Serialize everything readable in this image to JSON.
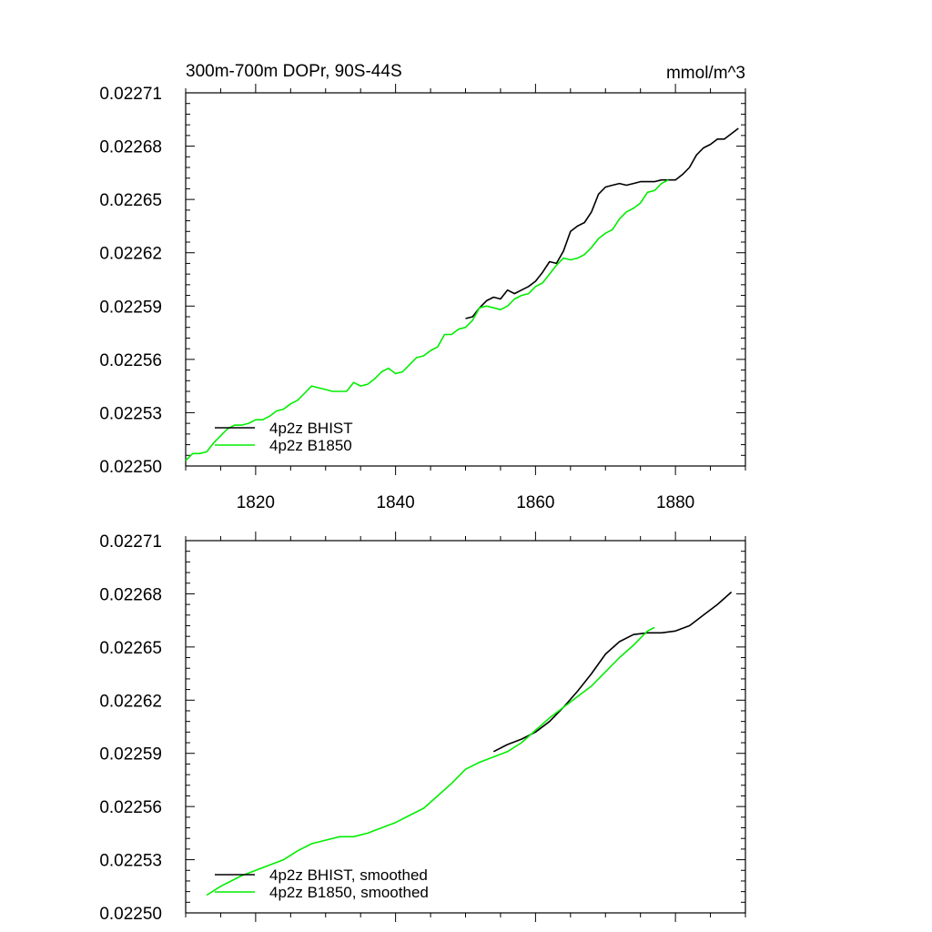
{
  "colors": {
    "bhist": "#000000",
    "b1850": "#00ee00",
    "background": "#ffffff"
  },
  "chart_data": [
    {
      "type": "line",
      "title": "300m-700m DOPr, 90S-44S",
      "units": "mmol/m^3",
      "xlabel": "",
      "ylabel": "",
      "xlim": [
        1810,
        1890
      ],
      "ylim": [
        0.0225,
        0.02271
      ],
      "yticks": [
        0.0225,
        0.02253,
        0.02256,
        0.02259,
        0.02262,
        0.02265,
        0.02268,
        0.02271
      ],
      "ytick_labels": [
        "0.02250",
        "0.02253",
        "0.02256",
        "0.02259",
        "0.02262",
        "0.02265",
        "0.02268",
        "0.02271"
      ],
      "xticks": [
        1820,
        1840,
        1860,
        1880
      ],
      "xtick_labels": [
        "1820",
        "1840",
        "1860",
        "1880"
      ],
      "legend": "bottom-left",
      "series": [
        {
          "name": "4p2z BHIST",
          "color_key": "bhist",
          "x": [
            1850,
            1851,
            1852,
            1853,
            1854,
            1855,
            1856,
            1857,
            1858,
            1859,
            1860,
            1861,
            1862,
            1863,
            1864,
            1865,
            1866,
            1867,
            1868,
            1869,
            1870,
            1871,
            1872,
            1873,
            1874,
            1875,
            1876,
            1877,
            1878,
            1879,
            1880,
            1881,
            1882,
            1883,
            1884,
            1885,
            1886,
            1887,
            1888,
            1889
          ],
          "y": [
            0.022583,
            0.022584,
            0.022589,
            0.022593,
            0.022595,
            0.022594,
            0.022599,
            0.022597,
            0.022599,
            0.022601,
            0.022604,
            0.022609,
            0.022615,
            0.022614,
            0.022621,
            0.022632,
            0.022635,
            0.022637,
            0.022643,
            0.022653,
            0.022657,
            0.022658,
            0.022659,
            0.022658,
            0.022659,
            0.02266,
            0.02266,
            0.02266,
            0.022661,
            0.022661,
            0.022661,
            0.022664,
            0.022668,
            0.022675,
            0.022679,
            0.022681,
            0.022684,
            0.022684,
            0.022687,
            0.02269
          ]
        },
        {
          "name": "4p2z B1850",
          "color_key": "b1850",
          "x": [
            1810,
            1811,
            1812,
            1813,
            1814,
            1815,
            1816,
            1817,
            1818,
            1819,
            1820,
            1821,
            1822,
            1823,
            1824,
            1825,
            1826,
            1827,
            1828,
            1829,
            1830,
            1831,
            1832,
            1833,
            1834,
            1835,
            1836,
            1837,
            1838,
            1839,
            1840,
            1841,
            1842,
            1843,
            1844,
            1845,
            1846,
            1847,
            1848,
            1849,
            1850,
            1851,
            1852,
            1853,
            1854,
            1855,
            1856,
            1857,
            1858,
            1859,
            1860,
            1861,
            1862,
            1863,
            1864,
            1865,
            1866,
            1867,
            1868,
            1869,
            1870,
            1871,
            1872,
            1873,
            1874,
            1875,
            1876,
            1877,
            1878,
            1879
          ],
          "y": [
            0.022503,
            0.022507,
            0.022507,
            0.022508,
            0.022513,
            0.022517,
            0.022521,
            0.022523,
            0.022523,
            0.022524,
            0.022526,
            0.022526,
            0.022528,
            0.022531,
            0.022532,
            0.022535,
            0.022537,
            0.022541,
            0.022545,
            0.022544,
            0.022543,
            0.022542,
            0.022542,
            0.022542,
            0.022547,
            0.022545,
            0.022546,
            0.022549,
            0.022553,
            0.022555,
            0.022552,
            0.022553,
            0.022557,
            0.022561,
            0.022562,
            0.022565,
            0.022567,
            0.022574,
            0.022574,
            0.022577,
            0.022578,
            0.022582,
            0.022589,
            0.02259,
            0.022589,
            0.022588,
            0.02259,
            0.022594,
            0.022596,
            0.022597,
            0.022601,
            0.022603,
            0.022608,
            0.022613,
            0.022617,
            0.022616,
            0.022617,
            0.022619,
            0.022623,
            0.022628,
            0.022631,
            0.022633,
            0.022639,
            0.022643,
            0.022645,
            0.022648,
            0.022654,
            0.022655,
            0.022659,
            0.022661
          ]
        }
      ]
    },
    {
      "type": "line",
      "title": "",
      "units": "",
      "xlabel": "",
      "ylabel": "",
      "xlim": [
        1810,
        1890
      ],
      "ylim": [
        0.0225,
        0.02271
      ],
      "yticks": [
        0.0225,
        0.02253,
        0.02256,
        0.02259,
        0.02262,
        0.02265,
        0.02268,
        0.02271
      ],
      "ytick_labels": [
        "0.02250",
        "0.02253",
        "0.02256",
        "0.02259",
        "0.02262",
        "0.02265",
        "0.02268",
        "0.02271"
      ],
      "xticks": [
        1820,
        1840,
        1860,
        1880
      ],
      "xtick_labels": [],
      "legend": "bottom-left",
      "series": [
        {
          "name": "4p2z BHIST, smoothed",
          "color_key": "bhist",
          "x": [
            1854,
            1856,
            1858,
            1860,
            1862,
            1864,
            1866,
            1868,
            1870,
            1872,
            1874,
            1876,
            1878,
            1880,
            1882,
            1884,
            1886,
            1888
          ],
          "y": [
            0.022591,
            0.022595,
            0.022598,
            0.022602,
            0.022608,
            0.022616,
            0.022625,
            0.022635,
            0.022646,
            0.022653,
            0.022657,
            0.022658,
            0.022658,
            0.022659,
            0.022662,
            0.022668,
            0.022674,
            0.022681
          ]
        },
        {
          "name": "4p2z B1850, smoothed",
          "color_key": "b1850",
          "x": [
            1813,
            1815,
            1818,
            1820,
            1822,
            1824,
            1826,
            1828,
            1830,
            1832,
            1834,
            1836,
            1838,
            1840,
            1842,
            1844,
            1846,
            1848,
            1850,
            1852,
            1854,
            1856,
            1858,
            1860,
            1862,
            1864,
            1866,
            1868,
            1870,
            1872,
            1874,
            1876,
            1877
          ],
          "y": [
            0.02251,
            0.022515,
            0.022521,
            0.022524,
            0.022527,
            0.02253,
            0.022535,
            0.022539,
            0.022541,
            0.022543,
            0.022543,
            0.022545,
            0.022548,
            0.022551,
            0.022555,
            0.022559,
            0.022566,
            0.022573,
            0.022581,
            0.022585,
            0.022588,
            0.022591,
            0.022596,
            0.022603,
            0.02261,
            0.022616,
            0.022622,
            0.022628,
            0.022636,
            0.022644,
            0.022651,
            0.022659,
            0.022661
          ]
        }
      ]
    }
  ]
}
